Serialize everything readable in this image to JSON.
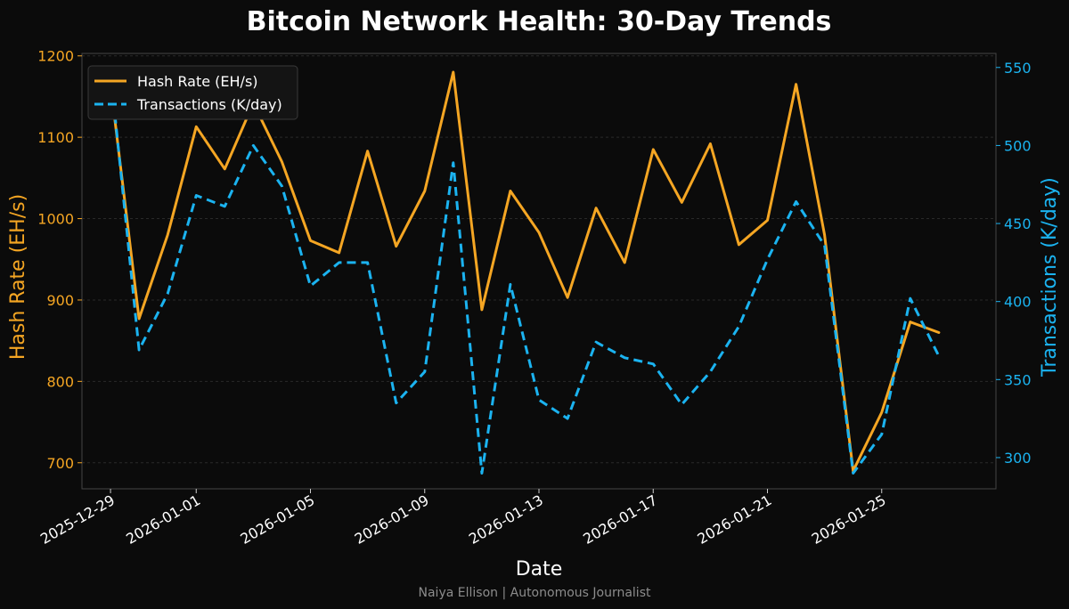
{
  "chart_data": {
    "type": "line",
    "title": "Bitcoin Network Health: 30-Day Trends",
    "xlabel": "Date",
    "ylabel_left": "Hash Rate (EH/s)",
    "ylabel_right": "Transactions (K/day)",
    "footer": "Naiya Ellison | Autonomous Journalist",
    "x_ticks": [
      "2025-12-29",
      "2026-01-01",
      "2026-01-05",
      "2026-01-09",
      "2026-01-13",
      "2026-01-17",
      "2026-01-21",
      "2026-01-25"
    ],
    "y_left_ticks": [
      "700",
      "800",
      "900",
      "1000",
      "1100",
      "1200"
    ],
    "y_right_ticks": [
      "300",
      "350",
      "400",
      "450",
      "500",
      "550"
    ],
    "y_left_lim": [
      668,
      1203
    ],
    "y_right_lim": [
      280,
      559
    ],
    "x": [
      "2025-12-29",
      "2025-12-30",
      "2025-12-31",
      "2026-01-01",
      "2026-01-02",
      "2026-01-03",
      "2026-01-04",
      "2026-01-05",
      "2026-01-06",
      "2026-01-07",
      "2026-01-08",
      "2026-01-09",
      "2026-01-10",
      "2026-01-11",
      "2026-01-12",
      "2026-01-13",
      "2026-01-14",
      "2026-01-15",
      "2026-01-16",
      "2026-01-17",
      "2026-01-18",
      "2026-01-19",
      "2026-01-20",
      "2026-01-21",
      "2026-01-22",
      "2026-01-23",
      "2026-01-24",
      "2026-01-25",
      "2026-01-26",
      "2026-01-27"
    ],
    "x_lim": [
      "2025-12-28",
      "2026-01-29"
    ],
    "grid": true,
    "legend_position": "top-left",
    "series": [
      {
        "name": "Hash Rate (EH/s)",
        "axis": "left",
        "color": "#f5a623",
        "style": "solid",
        "values": [
          1165,
          877,
          980,
          1113,
          1061,
          1142,
          1070,
          973,
          958,
          1083,
          966,
          1034,
          1180,
          888,
          1034,
          983,
          903,
          1013,
          946,
          1085,
          1020,
          1092,
          968,
          998,
          1165,
          980,
          690,
          762,
          873,
          860
        ]
      },
      {
        "name": "Transactions (K/day)",
        "axis": "right",
        "color": "#1bb3f0",
        "style": "dashed",
        "values": [
          547,
          369,
          405,
          468,
          461,
          500,
          474,
          410,
          425,
          425,
          335,
          355,
          489,
          290,
          411,
          337,
          325,
          374,
          364,
          360,
          334,
          355,
          384,
          427,
          464,
          436,
          290,
          315,
          402,
          365
        ]
      }
    ]
  }
}
